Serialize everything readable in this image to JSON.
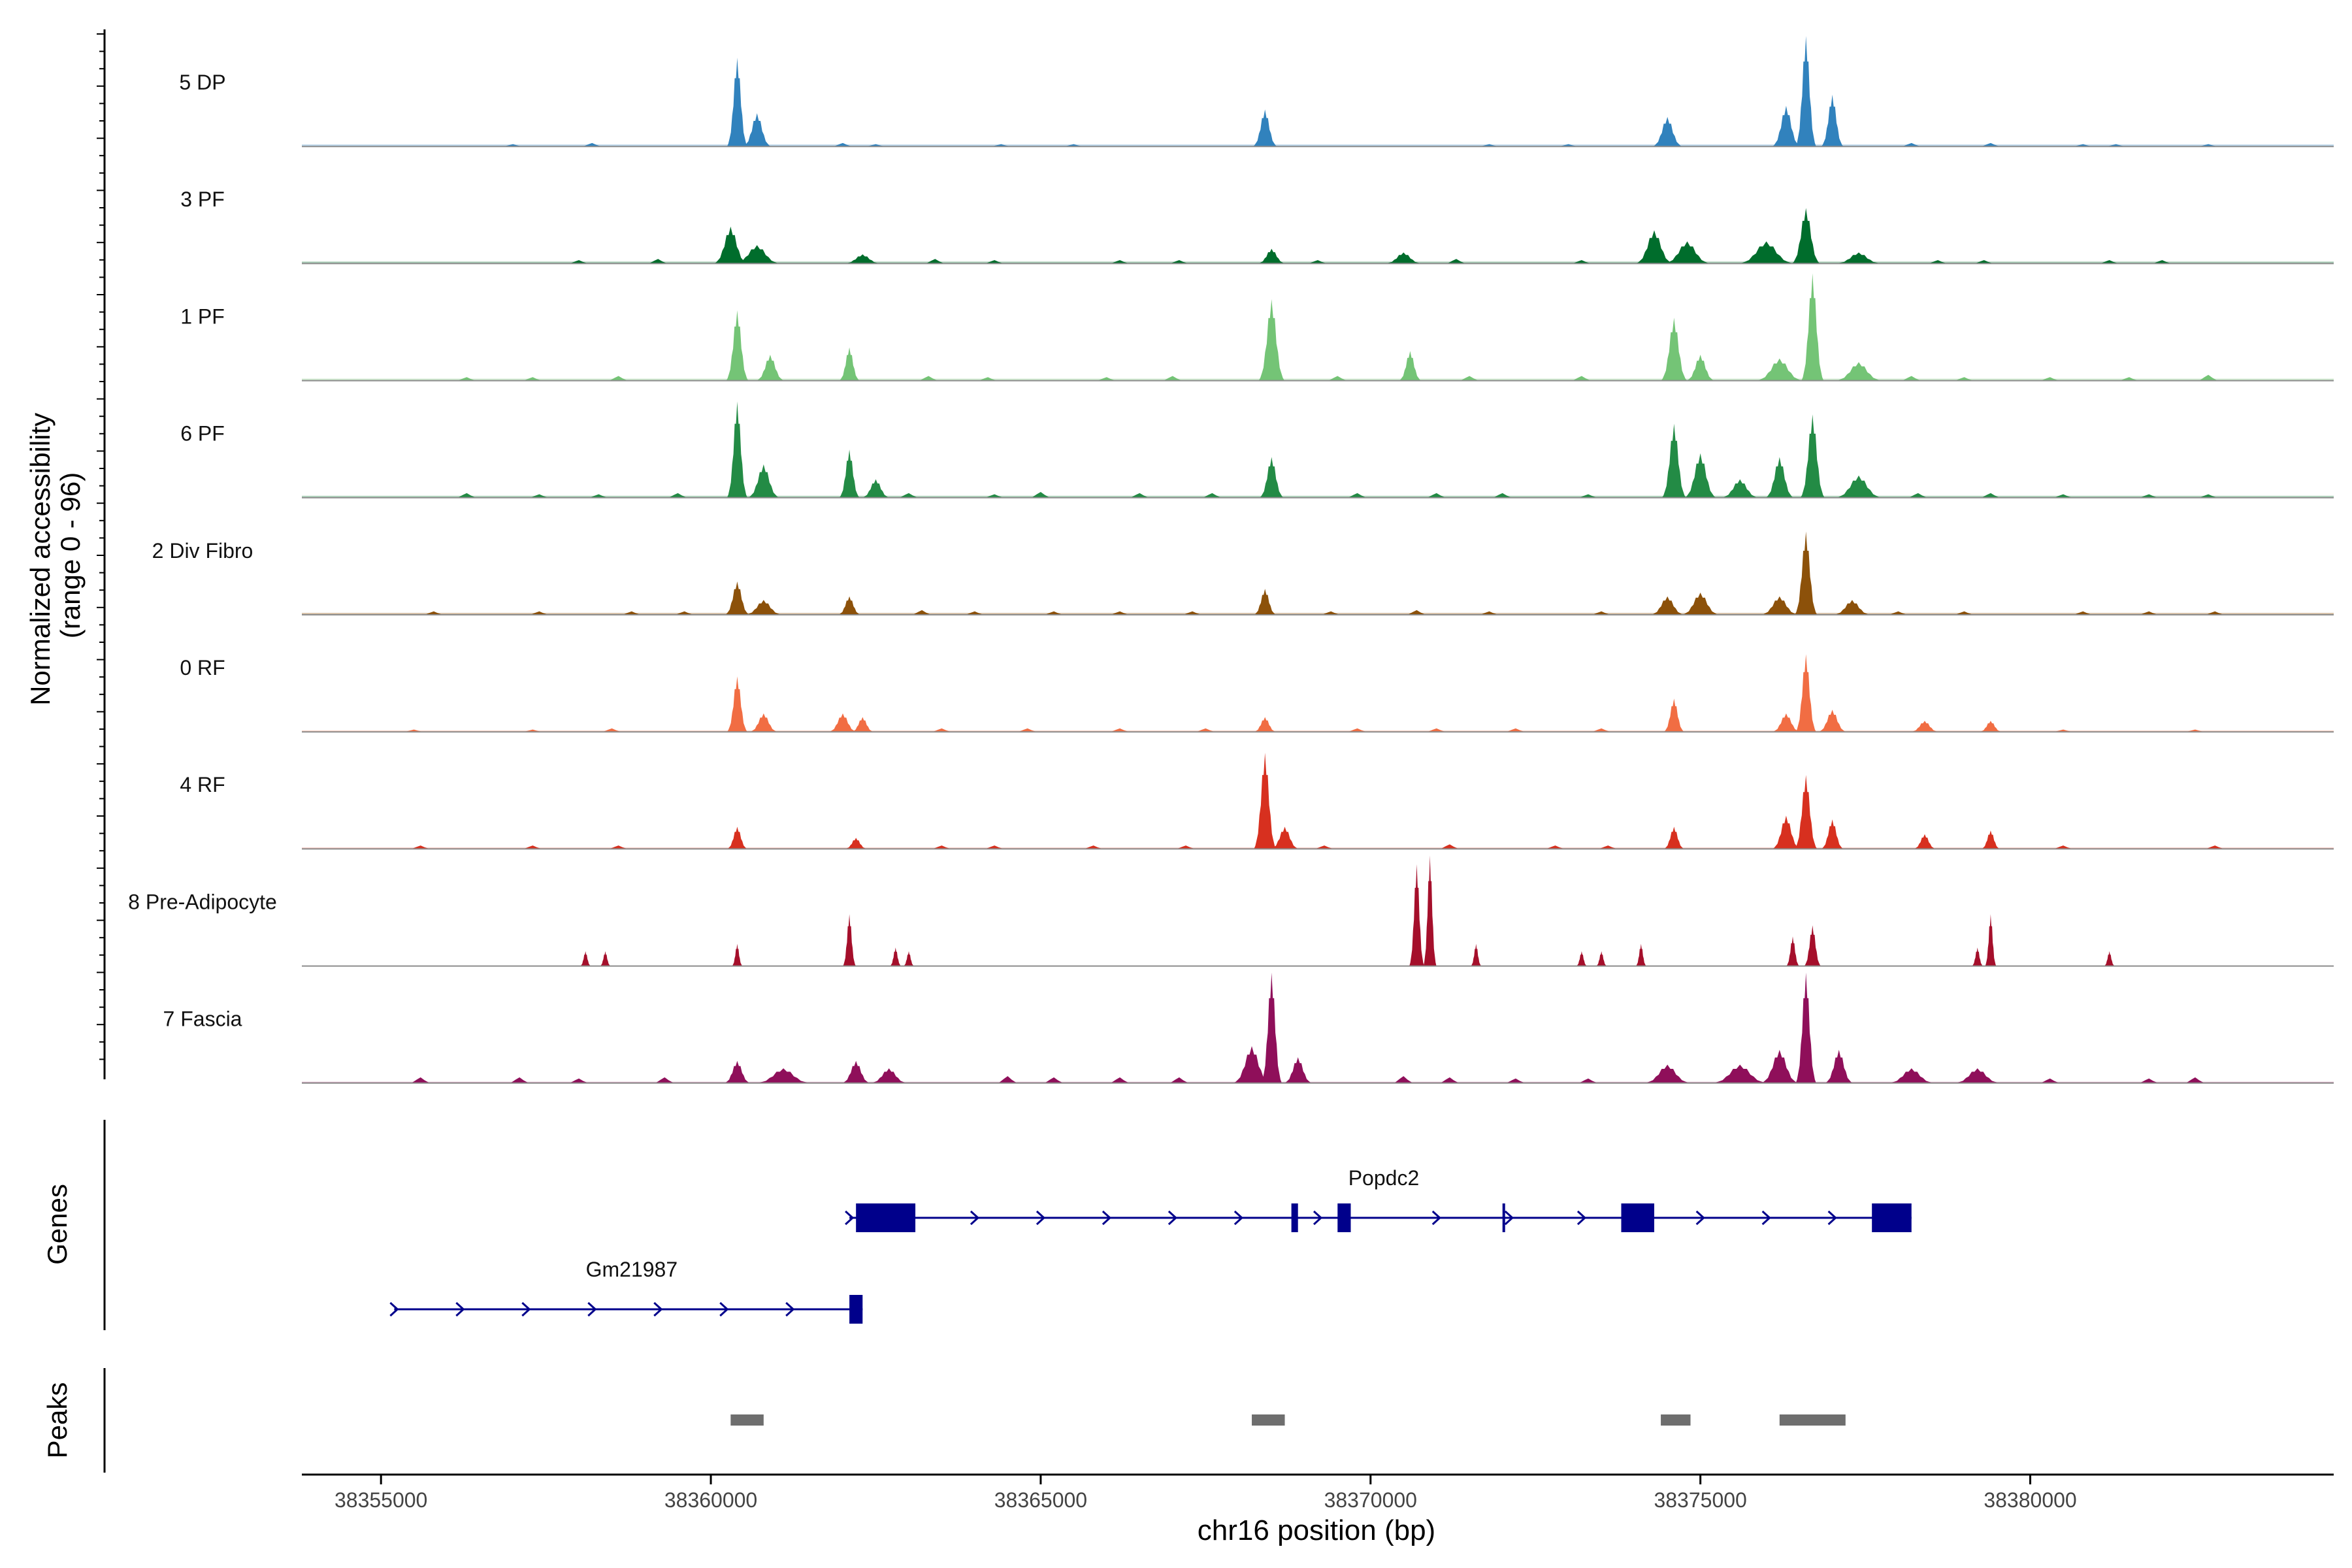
{
  "chart_data": {
    "type": "area",
    "title": "",
    "ylabel": "Normalized accessibility (range 0 - 96)",
    "ylabel_lines": [
      "Normalized accessibility",
      "(range 0 - 96)"
    ],
    "ylim": [
      0,
      96
    ],
    "xlabel": "chr16 position (bp)",
    "xlim": [
      38353800,
      38384600
    ],
    "x_ticks": [
      38355000,
      38360000,
      38365000,
      38370000,
      38375000,
      38380000
    ],
    "x_tick_labels": [
      "38355000",
      "38360000",
      "38365000",
      "38370000",
      "38375000",
      "38380000"
    ],
    "tracks": [
      {
        "name": "5 DP",
        "color": "#3182BD",
        "baseline": 3,
        "peaks": [
          [
            38360400,
            48,
            110
          ],
          [
            38360700,
            18,
            150
          ],
          [
            38368400,
            20,
            130
          ],
          [
            38374500,
            16,
            160
          ],
          [
            38376300,
            22,
            150
          ],
          [
            38376600,
            60,
            110
          ],
          [
            38377000,
            28,
            120
          ]
        ],
        "noise": [
          [
            38357000,
            2
          ],
          [
            38358200,
            3
          ],
          [
            38362000,
            3
          ],
          [
            38362500,
            2
          ],
          [
            38364400,
            2
          ],
          [
            38365500,
            2
          ],
          [
            38371800,
            2
          ],
          [
            38373000,
            2
          ],
          [
            38378200,
            3
          ],
          [
            38379400,
            3
          ],
          [
            38380800,
            2
          ],
          [
            38381300,
            2
          ],
          [
            38382700,
            2
          ]
        ]
      },
      {
        "name": "3 PF",
        "color": "#006D2C",
        "baseline": 3,
        "peaks": [
          [
            38360300,
            20,
            180
          ],
          [
            38360700,
            10,
            250
          ],
          [
            38362300,
            5,
            200
          ],
          [
            38368500,
            8,
            150
          ],
          [
            38370500,
            6,
            200
          ],
          [
            38374300,
            18,
            200
          ],
          [
            38374800,
            12,
            250
          ],
          [
            38376000,
            12,
            300
          ],
          [
            38376600,
            30,
            150
          ],
          [
            38377400,
            6,
            250
          ]
        ],
        "noise": [
          [
            38358000,
            3
          ],
          [
            38359200,
            4
          ],
          [
            38363400,
            4
          ],
          [
            38364300,
            3
          ],
          [
            38366200,
            3
          ],
          [
            38367100,
            3
          ],
          [
            38369200,
            3
          ],
          [
            38371300,
            4
          ],
          [
            38373200,
            3
          ],
          [
            38378600,
            3
          ],
          [
            38379300,
            3
          ],
          [
            38381200,
            3
          ],
          [
            38382000,
            3
          ]
        ]
      },
      {
        "name": "1 PF",
        "color": "#74C476",
        "baseline": 3,
        "peaks": [
          [
            38360400,
            38,
            120
          ],
          [
            38360900,
            14,
            150
          ],
          [
            38362100,
            18,
            110
          ],
          [
            38368500,
            44,
            140
          ],
          [
            38370600,
            16,
            120
          ],
          [
            38374600,
            34,
            140
          ],
          [
            38375000,
            14,
            150
          ],
          [
            38376200,
            12,
            250
          ],
          [
            38376700,
            58,
            120
          ],
          [
            38377400,
            10,
            250
          ]
        ],
        "noise": [
          [
            38356300,
            3
          ],
          [
            38357300,
            3
          ],
          [
            38358600,
            4
          ],
          [
            38363300,
            4
          ],
          [
            38364200,
            3
          ],
          [
            38366000,
            3
          ],
          [
            38367000,
            4
          ],
          [
            38369500,
            4
          ],
          [
            38371500,
            4
          ],
          [
            38373200,
            4
          ],
          [
            38378200,
            4
          ],
          [
            38379000,
            3
          ],
          [
            38380300,
            3
          ],
          [
            38381500,
            3
          ],
          [
            38382700,
            5
          ]
        ]
      },
      {
        "name": "6 PF",
        "color": "#238B45",
        "baseline": 3,
        "peaks": [
          [
            38360400,
            52,
            110
          ],
          [
            38360800,
            18,
            170
          ],
          [
            38362100,
            26,
            110
          ],
          [
            38362500,
            10,
            150
          ],
          [
            38368500,
            22,
            130
          ],
          [
            38374600,
            40,
            130
          ],
          [
            38375000,
            24,
            170
          ],
          [
            38375600,
            10,
            200
          ],
          [
            38376200,
            22,
            150
          ],
          [
            38376700,
            45,
            130
          ],
          [
            38377400,
            12,
            250
          ]
        ],
        "noise": [
          [
            38356300,
            4
          ],
          [
            38357400,
            3
          ],
          [
            38358300,
            3
          ],
          [
            38359500,
            4
          ],
          [
            38363000,
            4
          ],
          [
            38364300,
            3
          ],
          [
            38365000,
            5
          ],
          [
            38366500,
            4
          ],
          [
            38367600,
            4
          ],
          [
            38369800,
            4
          ],
          [
            38371000,
            4
          ],
          [
            38372000,
            4
          ],
          [
            38373300,
            3
          ],
          [
            38378300,
            4
          ],
          [
            38379400,
            4
          ],
          [
            38380500,
            3
          ],
          [
            38381800,
            3
          ],
          [
            38382700,
            3
          ]
        ]
      },
      {
        "name": "2 Div Fibro",
        "color": "#8C510A",
        "baseline": 3,
        "peaks": [
          [
            38360400,
            18,
            130
          ],
          [
            38360800,
            8,
            200
          ],
          [
            38362100,
            10,
            120
          ],
          [
            38368400,
            14,
            120
          ],
          [
            38374500,
            10,
            180
          ],
          [
            38375000,
            12,
            200
          ],
          [
            38376200,
            10,
            200
          ],
          [
            38376600,
            45,
            120
          ],
          [
            38377300,
            8,
            200
          ]
        ],
        "noise": [
          [
            38355800,
            3
          ],
          [
            38357400,
            3
          ],
          [
            38358800,
            3
          ],
          [
            38359600,
            3
          ],
          [
            38363200,
            4
          ],
          [
            38364000,
            3
          ],
          [
            38365200,
            3
          ],
          [
            38366200,
            3
          ],
          [
            38367300,
            3
          ],
          [
            38369400,
            3
          ],
          [
            38370700,
            4
          ],
          [
            38371800,
            3
          ],
          [
            38373500,
            3
          ],
          [
            38378000,
            3
          ],
          [
            38379000,
            3
          ],
          [
            38380800,
            3
          ],
          [
            38381800,
            3
          ],
          [
            38382800,
            3
          ]
        ]
      },
      {
        "name": "0 RF",
        "color": "#F16D43",
        "baseline": 2,
        "peaks": [
          [
            38360400,
            30,
            110
          ],
          [
            38360800,
            10,
            150
          ],
          [
            38362000,
            10,
            150
          ],
          [
            38362300,
            8,
            120
          ],
          [
            38368400,
            8,
            120
          ],
          [
            38374600,
            18,
            110
          ],
          [
            38376300,
            10,
            150
          ],
          [
            38376600,
            42,
            110
          ],
          [
            38377000,
            12,
            150
          ],
          [
            38378400,
            6,
            150
          ],
          [
            38379400,
            6,
            120
          ]
        ],
        "noise": [
          [
            38355500,
            2
          ],
          [
            38357300,
            2
          ],
          [
            38358500,
            3
          ],
          [
            38363500,
            3
          ],
          [
            38364800,
            3
          ],
          [
            38366200,
            3
          ],
          [
            38367500,
            3
          ],
          [
            38369800,
            3
          ],
          [
            38371000,
            3
          ],
          [
            38372200,
            3
          ],
          [
            38373500,
            3
          ],
          [
            38380500,
            2
          ],
          [
            38382500,
            2
          ]
        ]
      },
      {
        "name": "4 RF",
        "color": "#D7301F",
        "baseline": 2,
        "peaks": [
          [
            38360400,
            12,
            110
          ],
          [
            38362200,
            6,
            120
          ],
          [
            38368400,
            52,
            120
          ],
          [
            38368700,
            12,
            150
          ],
          [
            38374600,
            12,
            110
          ],
          [
            38376300,
            18,
            150
          ],
          [
            38376600,
            40,
            120
          ],
          [
            38377000,
            16,
            120
          ],
          [
            38378400,
            8,
            120
          ],
          [
            38379400,
            10,
            100
          ]
        ],
        "noise": [
          [
            38355600,
            3
          ],
          [
            38357300,
            3
          ],
          [
            38358600,
            3
          ],
          [
            38363500,
            3
          ],
          [
            38364300,
            3
          ],
          [
            38365800,
            3
          ],
          [
            38367200,
            3
          ],
          [
            38369300,
            3
          ],
          [
            38371200,
            4
          ],
          [
            38372800,
            3
          ],
          [
            38373600,
            3
          ],
          [
            38380500,
            3
          ],
          [
            38382800,
            3
          ]
        ]
      },
      {
        "name": "8 Pre-Adipocyte",
        "color": "#A50F2B",
        "baseline": 0,
        "peaks": [
          [
            38358100,
            8,
            40
          ],
          [
            38358400,
            8,
            40
          ],
          [
            38360400,
            12,
            50
          ],
          [
            38362100,
            28,
            70
          ],
          [
            38362800,
            10,
            60
          ],
          [
            38363000,
            8,
            50
          ],
          [
            38370700,
            55,
            80
          ],
          [
            38370900,
            80,
            70
          ],
          [
            38371600,
            12,
            50
          ],
          [
            38373200,
            8,
            50
          ],
          [
            38373500,
            8,
            50
          ],
          [
            38374100,
            12,
            50
          ],
          [
            38376400,
            16,
            70
          ],
          [
            38376700,
            22,
            90
          ],
          [
            38379200,
            10,
            60
          ],
          [
            38379400,
            28,
            60
          ],
          [
            38381200,
            8,
            50
          ]
        ],
        "noise": []
      },
      {
        "name": "7 Fascia",
        "color": "#8F0F5A",
        "baseline": 2,
        "peaks": [
          [
            38360400,
            12,
            140
          ],
          [
            38361100,
            8,
            300
          ],
          [
            38362200,
            12,
            150
          ],
          [
            38362700,
            8,
            200
          ],
          [
            38368200,
            20,
            200
          ],
          [
            38368500,
            85,
            110
          ],
          [
            38368900,
            14,
            150
          ],
          [
            38374500,
            10,
            250
          ],
          [
            38375600,
            10,
            300
          ],
          [
            38376200,
            18,
            200
          ],
          [
            38376600,
            68,
            110
          ],
          [
            38377100,
            18,
            150
          ],
          [
            38378200,
            8,
            250
          ],
          [
            38379200,
            8,
            250
          ]
        ],
        "noise": [
          [
            38355600,
            5
          ],
          [
            38357100,
            5
          ],
          [
            38358000,
            4
          ],
          [
            38359300,
            5
          ],
          [
            38364500,
            6
          ],
          [
            38365200,
            5
          ],
          [
            38366200,
            5
          ],
          [
            38367100,
            5
          ],
          [
            38370500,
            6
          ],
          [
            38371200,
            5
          ],
          [
            38372200,
            4
          ],
          [
            38373300,
            4
          ],
          [
            38380300,
            4
          ],
          [
            38381800,
            4
          ],
          [
            38382500,
            5
          ]
        ]
      }
    ],
    "genes_title": "Genes",
    "gene_color": "#00008B",
    "genes": [
      {
        "name": "Popdc2",
        "strand": "+",
        "start": 38362100,
        "end": 38378200,
        "label_x": 38370200,
        "exons": [
          [
            38362200,
            38363100
          ],
          [
            38368800,
            38368900
          ],
          [
            38369500,
            38369700
          ],
          [
            38372000,
            38372030
          ],
          [
            38373800,
            38374300
          ],
          [
            38377600,
            38378200
          ]
        ],
        "arrows": [
          38362100,
          38364000,
          38365000,
          38366000,
          38367000,
          38368000,
          38369200,
          38371000,
          38372100,
          38373200,
          38375000,
          38376000,
          38377000
        ]
      },
      {
        "name": "Gm21987",
        "strand": "+",
        "start": 38355200,
        "end": 38362300,
        "label_x": 38358800,
        "exons": [
          [
            38362100,
            38362300
          ]
        ],
        "arrows": [
          38355200,
          38356200,
          38357200,
          38358200,
          38359200,
          38360200,
          38361200
        ]
      }
    ],
    "peaks_title": "Peaks",
    "peak_color": "#6E6E6E",
    "peak_regions": [
      [
        38360300,
        38360800
      ],
      [
        38368200,
        38368700
      ],
      [
        38374400,
        38374850
      ],
      [
        38376200,
        38377200
      ]
    ]
  }
}
